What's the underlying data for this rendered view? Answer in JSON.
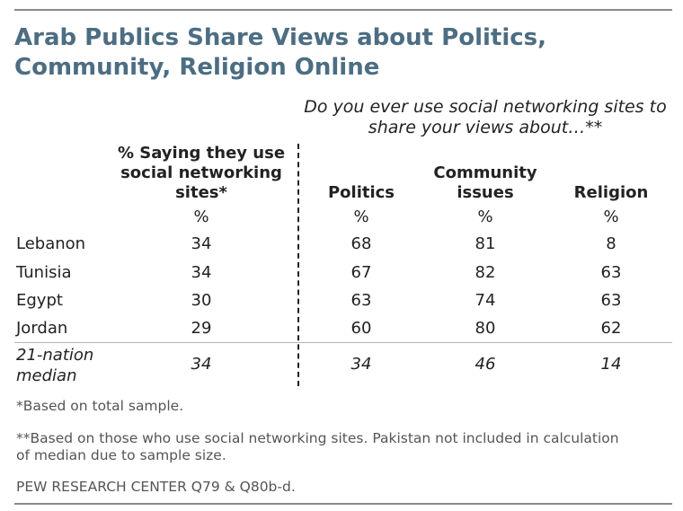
{
  "title": "Arab Publics Share Views about Politics, Community, Religion Online",
  "question": "Do you ever use social networking sites to share your views about…**",
  "header": {
    "sns": "% Saying they use social networking sites*",
    "politics": "Politics",
    "community": "Community issues",
    "religion": "Religion",
    "unit": "%"
  },
  "chart_data": {
    "type": "table",
    "columns": [
      "% Saying they use social networking sites*",
      "Politics",
      "Community issues",
      "Religion"
    ],
    "unit": "%",
    "rows": [
      {
        "label": "Lebanon",
        "values": [
          "34",
          "68",
          "81",
          "8"
        ]
      },
      {
        "label": "Tunisia",
        "values": [
          "34",
          "67",
          "82",
          "63"
        ]
      },
      {
        "label": "Egypt",
        "values": [
          "30",
          "63",
          "74",
          "63"
        ]
      },
      {
        "label": "Jordan",
        "values": [
          "29",
          "60",
          "80",
          "62"
        ]
      }
    ],
    "median": {
      "label": "21-nation median",
      "values": [
        "34",
        "34",
        "46",
        "14"
      ]
    }
  },
  "notes": {
    "sample": "*Based on total sample.",
    "sns_users": "**Based on those who use social networking sites.  Pakistan not included in calculation of median due to sample size.",
    "source": "PEW RESEARCH CENTER Q79 & Q80b-d."
  }
}
